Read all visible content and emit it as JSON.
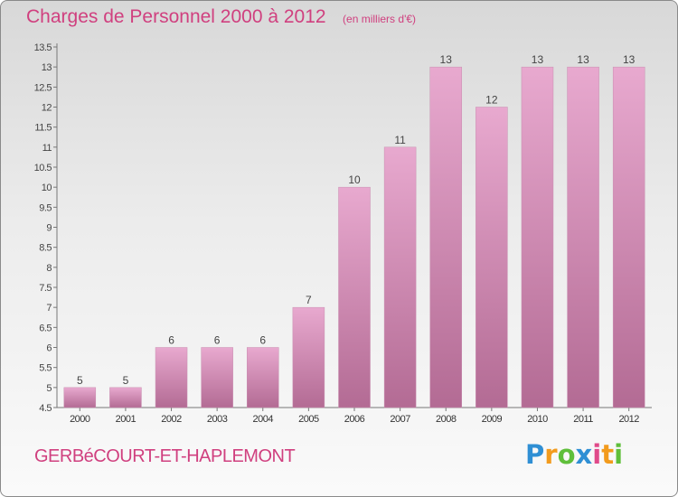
{
  "header": {
    "title": "Charges de Personnel 2000 à 2012",
    "subtitle": "(en milliers d'€)"
  },
  "footer": {
    "place": "GERBéCOURT-ET-HAPLEMONT",
    "logo": [
      "P",
      "r",
      "o",
      "x",
      "i",
      "t",
      "i"
    ]
  },
  "colors": {
    "bar_light": "#e8a9cf",
    "bar_dark": "#b36b94",
    "title": "#d0407f"
  },
  "chart_data": {
    "type": "bar",
    "title": "Charges de Personnel 2000 à 2012",
    "subtitle": "(en milliers d'€)",
    "categories": [
      "2000",
      "2001",
      "2002",
      "2003",
      "2004",
      "2005",
      "2006",
      "2007",
      "2008",
      "2009",
      "2010",
      "2011",
      "2012"
    ],
    "values": [
      5,
      5,
      6,
      6,
      6,
      7,
      10,
      11,
      13,
      12,
      13,
      13,
      13
    ],
    "ylim": [
      4.5,
      13.5
    ],
    "yticks": [
      "4.5",
      "5",
      "5.5",
      "6",
      "6.5",
      "7",
      "7.5",
      "8",
      "8.5",
      "9",
      "9.5",
      "10",
      "10.5",
      "11",
      "11.5",
      "12",
      "12.5",
      "13",
      "13.5"
    ],
    "grid": false,
    "legend": "none"
  }
}
